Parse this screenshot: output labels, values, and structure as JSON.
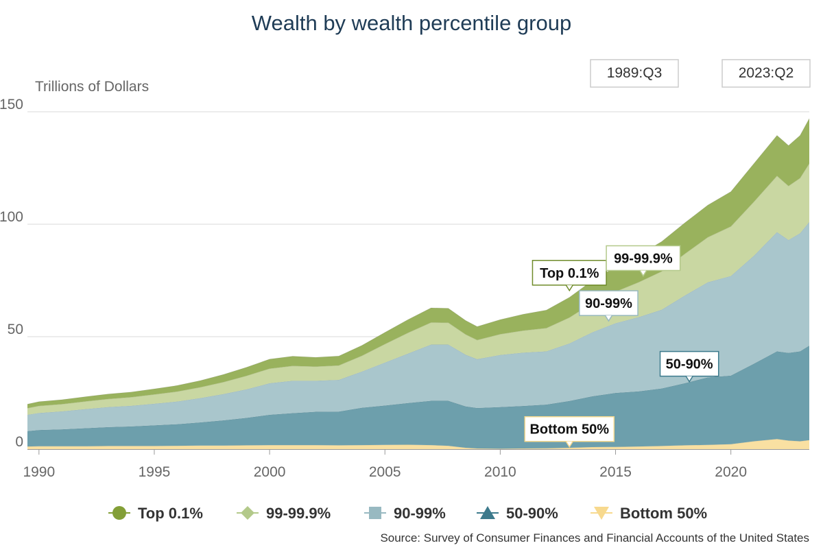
{
  "chart_data": {
    "type": "area",
    "stacked": true,
    "title": "Wealth by wealth percentile group",
    "ylabel": "Trillions of Dollars",
    "xlabel": "",
    "range_selector": {
      "start": "1989:Q3",
      "end": "2023:Q2"
    },
    "xlim": [
      1989.5,
      2023.4
    ],
    "ylim": [
      0,
      150
    ],
    "x_ticks": [
      1990,
      1995,
      2000,
      2005,
      2010,
      2015,
      2020
    ],
    "y_ticks": [
      0,
      50,
      100,
      150
    ],
    "grid": true,
    "legend_position": "bottom",
    "source": "Source: Survey of Consumer Finances and Financial Accounts of the United States",
    "x": [
      1989.5,
      1990,
      1991,
      1992,
      1993,
      1994,
      1995,
      1996,
      1997,
      1998,
      1999,
      2000,
      2001,
      2002,
      2003,
      2004,
      2005,
      2006,
      2007,
      2007.75,
      2008.5,
      2009,
      2010,
      2011,
      2012,
      2013,
      2014,
      2015,
      2016,
      2017,
      2018,
      2019,
      2020,
      2021,
      2022,
      2022.5,
      2023,
      2023.4
    ],
    "series": [
      {
        "name": "Bottom 50%",
        "color": "#f9e0a2",
        "values": [
          1.2,
          1.3,
          1.3,
          1.3,
          1.4,
          1.4,
          1.4,
          1.5,
          1.6,
          1.6,
          1.7,
          1.8,
          1.8,
          1.8,
          1.7,
          1.8,
          1.9,
          2.0,
          1.8,
          1.5,
          0.6,
          0.3,
          0.2,
          0.3,
          0.4,
          0.6,
          0.9,
          1.0,
          1.2,
          1.4,
          1.7,
          1.9,
          2.2,
          3.5,
          4.5,
          3.8,
          3.5,
          4.0
        ]
      },
      {
        "name": "50-90%",
        "color": "#6d9fac",
        "values": [
          6.8,
          7.2,
          7.5,
          8.0,
          8.4,
          8.7,
          9.2,
          9.6,
          10.3,
          11.2,
          12.2,
          13.5,
          14.2,
          14.8,
          15.0,
          16.6,
          17.5,
          18.5,
          19.7,
          20.0,
          18.4,
          18.0,
          18.5,
          18.9,
          19.4,
          20.8,
          22.6,
          24.0,
          24.5,
          25.6,
          27.6,
          30.0,
          30.5,
          34.5,
          39.0,
          39.0,
          40.0,
          42.0
        ]
      },
      {
        "name": "90-99%",
        "color": "#a9c6cc",
        "values": [
          7.3,
          7.6,
          8.0,
          8.5,
          8.9,
          9.2,
          9.6,
          10.1,
          10.8,
          11.7,
          12.7,
          14.0,
          14.4,
          13.8,
          14.1,
          16.1,
          19.1,
          22.0,
          25.0,
          25.0,
          23.0,
          21.7,
          23.2,
          23.7,
          23.7,
          25.6,
          28.5,
          31.0,
          33.0,
          35.0,
          39.0,
          42.3,
          44.3,
          48.0,
          53.0,
          50.2,
          52.5,
          55.0
        ]
      },
      {
        "name": "99-99.9%",
        "color": "#c9d7a2",
        "values": [
          2.9,
          3.1,
          3.2,
          3.4,
          3.6,
          3.8,
          4.1,
          4.4,
          4.8,
          5.3,
          6.0,
          6.5,
          6.6,
          6.3,
          6.4,
          7.0,
          8.2,
          9.2,
          9.8,
          9.7,
          9.0,
          8.5,
          9.2,
          9.8,
          10.3,
          11.5,
          13.0,
          14.0,
          15.5,
          17.0,
          18.5,
          20.0,
          22.0,
          24.0,
          25.0,
          24.0,
          24.5,
          26.0
        ]
      },
      {
        "name": "Top 0.1%",
        "color": "#99b25d",
        "values": [
          1.8,
          1.9,
          2.0,
          2.1,
          2.2,
          2.3,
          2.5,
          2.7,
          3.0,
          3.4,
          3.8,
          4.2,
          4.3,
          4.1,
          4.2,
          4.6,
          5.2,
          5.9,
          6.5,
          6.4,
          6.2,
          6.0,
          6.5,
          7.3,
          8.0,
          9.0,
          10.0,
          11.0,
          12.0,
          13.3,
          13.8,
          14.3,
          15.5,
          17.0,
          18.0,
          18.0,
          19.0,
          20.0
        ]
      }
    ],
    "legend": [
      {
        "label": "Top 0.1%",
        "marker": "circle",
        "color": "#839f37"
      },
      {
        "label": "99-99.9%",
        "marker": "diamond",
        "color": "#b3c98a"
      },
      {
        "label": "90-99%",
        "marker": "square",
        "color": "#98b9c1"
      },
      {
        "label": "50-90%",
        "marker": "triangle",
        "color": "#3d7a8c"
      },
      {
        "label": "Bottom 50%",
        "marker": "triangle-down",
        "color": "#f7d98e"
      }
    ],
    "annotations": [
      {
        "text": "Top 0.1%",
        "x": 2013,
        "y": 70.5,
        "border": "#6f8b2a"
      },
      {
        "text": "99-99.9%",
        "x": 2016.2,
        "y": 77,
        "border": "#b3c98a"
      },
      {
        "text": "90-99%",
        "x": 2014.7,
        "y": 57,
        "border": "#98b9c1"
      },
      {
        "text": "50-90%",
        "x": 2018.2,
        "y": 30,
        "border": "#3d7a8c"
      },
      {
        "text": "Bottom 50%",
        "x": 2013,
        "y": 1.0,
        "border": "#f7d98e"
      }
    ]
  }
}
